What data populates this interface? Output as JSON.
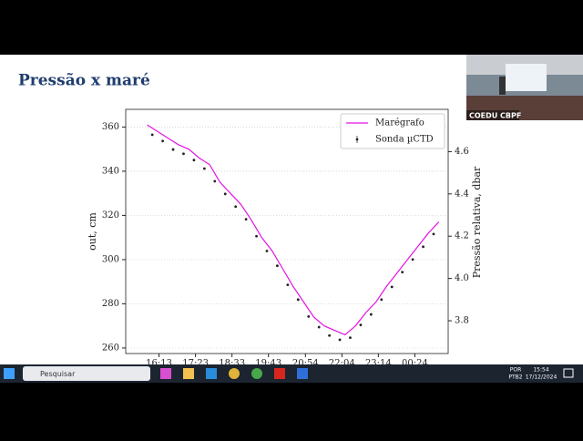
{
  "slide": {
    "title": "Pressão x maré"
  },
  "webcam": {
    "label": "COEDU CBPF"
  },
  "chart_data": {
    "type": "line",
    "ylabel": "out, cm",
    "y2label": "Pressão relativa, dbar",
    "xlim": [
      909,
      1528
    ],
    "xticks": [
      {
        "value": 973,
        "label": "16:13"
      },
      {
        "value": 1043,
        "label": "17:23"
      },
      {
        "value": 1113,
        "label": "18:33"
      },
      {
        "value": 1183,
        "label": "19:43"
      },
      {
        "value": 1254,
        "label": "20:54"
      },
      {
        "value": 1324,
        "label": "22:04"
      },
      {
        "value": 1394,
        "label": "23:14"
      },
      {
        "value": 1464,
        "label": "00:24"
      }
    ],
    "ylim": [
      257.5,
      368
    ],
    "yticks": [
      260,
      280,
      300,
      320,
      340,
      360
    ],
    "y2lim": [
      3.645,
      4.8
    ],
    "y2ticks": [
      3.8,
      {
        "value": 4,
        "label": "4.0"
      },
      4.2,
      4.4,
      4.6
    ],
    "grid": true,
    "legend": "upper right",
    "series": [
      {
        "name": "Marégrafo",
        "type": "line",
        "color": "#e313e3",
        "x": [
          950,
          970,
          990,
          1010,
          1030,
          1050,
          1070,
          1090,
          1110,
          1130,
          1150,
          1170,
          1190,
          1210,
          1230,
          1250,
          1270,
          1290,
          1310,
          1330,
          1350,
          1370,
          1390,
          1410,
          1430,
          1450,
          1470,
          1490,
          1510
        ],
        "values": [
          361,
          358,
          355,
          352,
          350,
          346,
          343,
          335,
          330,
          325,
          318,
          310,
          304,
          296,
          288,
          281,
          274,
          270,
          268,
          266,
          270,
          276,
          281,
          288,
          294,
          300,
          306,
          312,
          317
        ]
      },
      {
        "name": "Sonda µCTD",
        "type": "scatter",
        "axis": "y2",
        "color": "#222222",
        "x": [
          960,
          980,
          1000,
          1020,
          1040,
          1060,
          1080,
          1100,
          1120,
          1140,
          1160,
          1180,
          1200,
          1220,
          1240,
          1260,
          1280,
          1300,
          1320,
          1340,
          1360,
          1380,
          1400,
          1420,
          1440,
          1460,
          1480,
          1500
        ],
        "values": [
          4.68,
          4.65,
          4.61,
          4.59,
          4.56,
          4.52,
          4.46,
          4.4,
          4.34,
          4.28,
          4.2,
          4.13,
          4.06,
          3.97,
          3.9,
          3.82,
          3.77,
          3.73,
          3.71,
          3.72,
          3.78,
          3.83,
          3.9,
          3.96,
          4.03,
          4.09,
          4.15,
          4.21
        ]
      }
    ]
  },
  "taskbar": {
    "search": "Pesquisar",
    "language": "POR",
    "layout": "PTB2",
    "time": "15:54",
    "date": "17/12/2024"
  }
}
